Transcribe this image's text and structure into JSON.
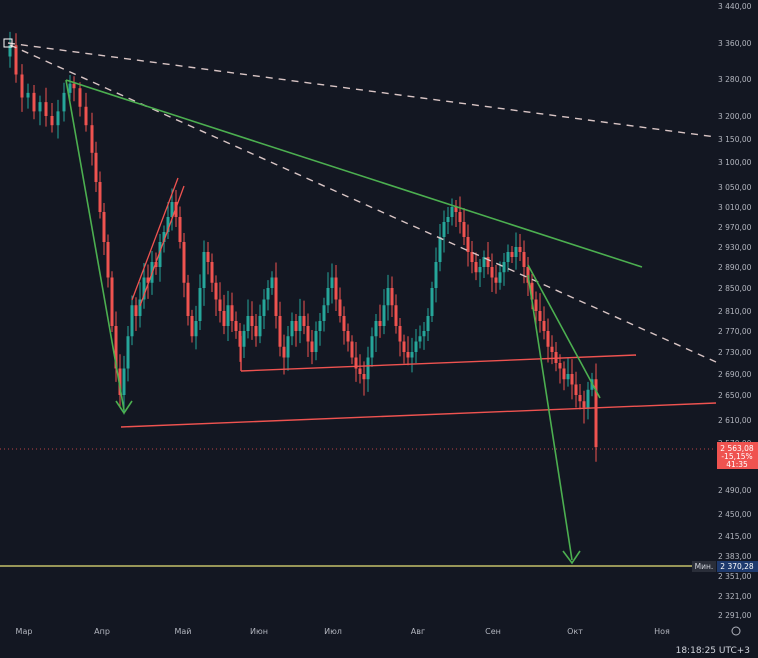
{
  "chart_data": {
    "type": "candlestick",
    "y_axis_ticks": [
      3440,
      3360,
      3280,
      3200,
      3150,
      3100,
      3050,
      3010,
      2970,
      2930,
      2890,
      2850,
      2810,
      2770,
      2730,
      2690,
      2650,
      2610,
      2570,
      2490,
      2450,
      2415,
      2383,
      2351,
      2321,
      2291
    ],
    "y_axis_tick_labels": [
      "3 440,00",
      "3 360,00",
      "3 280,00",
      "3 200,00",
      "3 150,00",
      "3 100,00",
      "3 050,00",
      "3 010,00",
      "2 970,00",
      "2 930,00",
      "2 890,00",
      "2 850,00",
      "2 810,00",
      "2 770,00",
      "2 730,00",
      "2 690,00",
      "2 650,00",
      "2 610,00",
      "2 570,00",
      "2 490,00",
      "2 450,00",
      "2 415,00",
      "2 383,00",
      "2 351,00",
      "2 321,00",
      "2 291,00"
    ],
    "x_axis_labels": [
      "Мар",
      "Апр",
      "Май",
      "Июн",
      "Июл",
      "Авг",
      "Сен",
      "Окт",
      "Ноя"
    ],
    "last_price": {
      "value": "2 563,08",
      "change": "-15,15%",
      "countdown": "41:35"
    },
    "min_label": {
      "tag": "Мин.",
      "value": "2 370,28"
    },
    "colors": {
      "up": "#26a69a",
      "down": "#ef5350",
      "background": "#131722",
      "green_line": "#4caf50",
      "red_line": "#ef5350",
      "dashed": "#d9c5c5",
      "yellow": "#e8e27a"
    },
    "drawings": [
      {
        "kind": "trendline",
        "color": "green",
        "desc": "falling resistance from March high"
      },
      {
        "kind": "trendline",
        "color": "dashed",
        "desc": "long-term dashed resistance"
      },
      {
        "kind": "trendline",
        "color": "dashed",
        "desc": "steeper dashed resistance"
      },
      {
        "kind": "horizontal",
        "color": "red",
        "desc": "support levels"
      },
      {
        "kind": "arrow",
        "color": "green",
        "desc": "projected drop target"
      },
      {
        "kind": "horizontal",
        "color": "yellow",
        "value": 2370.28
      }
    ]
  },
  "clock": "18:18:25 UTC+3"
}
